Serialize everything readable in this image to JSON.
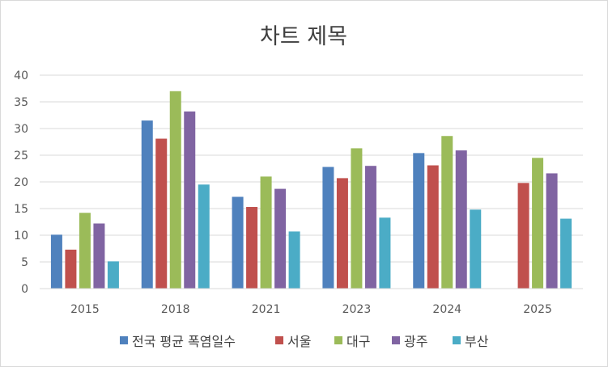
{
  "chart_data": {
    "type": "bar",
    "title": "차트 제목",
    "xlabel": "",
    "ylabel": "",
    "ylim": [
      0,
      40
    ],
    "yticks": [
      0,
      5,
      10,
      15,
      20,
      25,
      30,
      35,
      40
    ],
    "grid": true,
    "legend_position": "bottom",
    "categories": [
      "2015",
      "2018",
      "2021",
      "2023",
      "2024",
      "2025"
    ],
    "series": [
      {
        "name": "전국 평균 폭염일수",
        "color": "#4f81bd",
        "values": [
          10.1,
          31.5,
          17.2,
          22.8,
          25.4,
          null
        ]
      },
      {
        "name": "서울",
        "color": "#c0504d",
        "values": [
          7.3,
          28.1,
          15.3,
          20.7,
          23.1,
          19.8
        ]
      },
      {
        "name": "대구",
        "color": "#9bbb59",
        "values": [
          14.2,
          37.0,
          21.0,
          26.3,
          28.6,
          24.5
        ]
      },
      {
        "name": "광주",
        "color": "#8064a2",
        "values": [
          12.2,
          33.2,
          18.7,
          23.0,
          25.9,
          21.6
        ]
      },
      {
        "name": "부산",
        "color": "#4bacc6",
        "values": [
          5.1,
          19.5,
          10.7,
          13.3,
          14.8,
          13.1
        ]
      }
    ]
  }
}
